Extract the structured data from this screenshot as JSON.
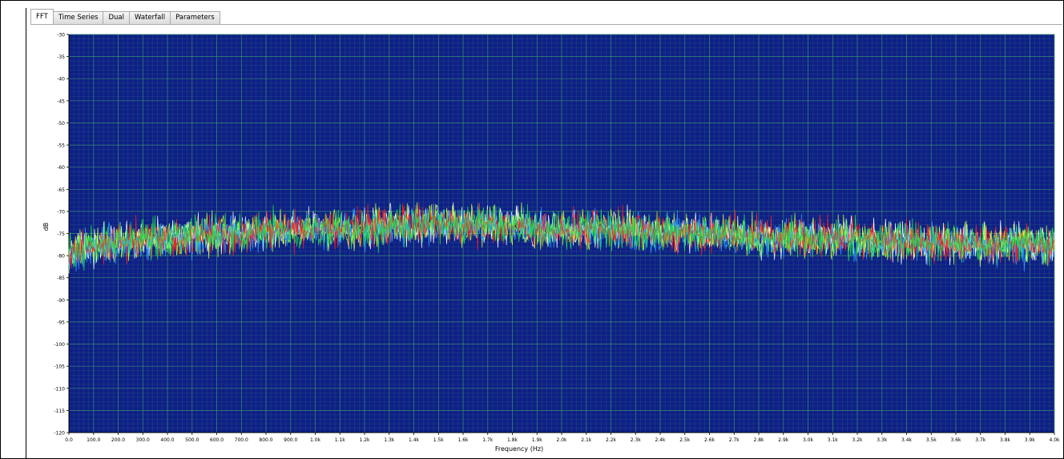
{
  "tabs": [
    {
      "label": "FFT",
      "active": true
    },
    {
      "label": "Time Series",
      "active": false
    },
    {
      "label": "Dual",
      "active": false
    },
    {
      "label": "Waterfall",
      "active": false
    },
    {
      "label": "Parameters",
      "active": false
    }
  ],
  "colors": {
    "plot_background": "#0e1f87",
    "grid": "#3a8a6c",
    "axis_text": "#000000"
  },
  "chart_data": {
    "type": "line",
    "title": "",
    "xlabel": "Frequency (Hz)",
    "ylabel": "dB",
    "xlim": [
      0,
      4000
    ],
    "ylim": [
      -120,
      -30
    ],
    "grid": true,
    "legend": "none",
    "x_tick_labels": [
      "0.0",
      "100.0",
      "200.0",
      "300.0",
      "400.0",
      "500.0",
      "600.0",
      "700.0",
      "800.0",
      "900.0",
      "1.0k",
      "1.1k",
      "1.2k",
      "1.3k",
      "1.4k",
      "1.5k",
      "1.6k",
      "1.7k",
      "1.8k",
      "1.9k",
      "2.0k",
      "2.1k",
      "2.2k",
      "2.3k",
      "2.4k",
      "2.5k",
      "2.6k",
      "2.7k",
      "2.8k",
      "2.9k",
      "3.0k",
      "3.1k",
      "3.2k",
      "3.3k",
      "3.4k",
      "3.5k",
      "3.6k",
      "3.7k",
      "3.8k",
      "3.9k",
      "4.0k"
    ],
    "y_tick_labels": [
      "-30",
      "-35",
      "-40",
      "-45",
      "-50",
      "-55",
      "-60",
      "-65",
      "-70",
      "-75",
      "-80",
      "-85",
      "-90",
      "-95",
      "-100",
      "-105",
      "-110",
      "-115",
      "-120"
    ],
    "series": [
      {
        "color": "#ffffff",
        "x": [
          0,
          100,
          200,
          300,
          400,
          500,
          600,
          700,
          800,
          900,
          1000,
          1100,
          1200,
          1300,
          1400,
          1500,
          1600,
          1700,
          1800,
          1900,
          2000,
          2100,
          2200,
          2300,
          2400,
          2500,
          2600,
          2700,
          2800,
          2900,
          3000,
          3100,
          3200,
          3300,
          3400,
          3500,
          3600,
          3700,
          3800,
          3900,
          4000
        ],
        "y": [
          -79,
          -78,
          -77,
          -76,
          -76,
          -75,
          -75,
          -75,
          -74,
          -74,
          -74,
          -74,
          -74,
          -73,
          -73,
          -73,
          -73,
          -73,
          -73,
          -74,
          -74,
          -74,
          -74,
          -74,
          -75,
          -75,
          -75,
          -75,
          -76,
          -76,
          -76,
          -76,
          -76,
          -76,
          -77,
          -77,
          -77,
          -77,
          -77,
          -77,
          -78
        ]
      },
      {
        "color": "#c8ff3c",
        "x": [
          0,
          100,
          200,
          300,
          400,
          500,
          600,
          700,
          800,
          900,
          1000,
          1100,
          1200,
          1300,
          1400,
          1500,
          1600,
          1700,
          1800,
          1900,
          2000,
          2100,
          2200,
          2300,
          2400,
          2500,
          2600,
          2700,
          2800,
          2900,
          3000,
          3100,
          3200,
          3300,
          3400,
          3500,
          3600,
          3700,
          3800,
          3900,
          4000
        ],
        "y": [
          -79,
          -78,
          -77,
          -76,
          -76,
          -76,
          -75,
          -75,
          -74,
          -74,
          -74,
          -74,
          -74,
          -73,
          -73,
          -73,
          -73,
          -73,
          -73,
          -74,
          -74,
          -74,
          -74,
          -74,
          -75,
          -75,
          -75,
          -75,
          -76,
          -76,
          -76,
          -76,
          -76,
          -77,
          -77,
          -77,
          -77,
          -77,
          -77,
          -77,
          -78
        ]
      },
      {
        "color": "#2a9cff",
        "x": [
          0,
          100,
          200,
          300,
          400,
          500,
          600,
          700,
          800,
          900,
          1000,
          1100,
          1200,
          1300,
          1400,
          1500,
          1600,
          1700,
          1800,
          1900,
          2000,
          2100,
          2200,
          2300,
          2400,
          2500,
          2600,
          2700,
          2800,
          2900,
          3000,
          3100,
          3200,
          3300,
          3400,
          3500,
          3600,
          3700,
          3800,
          3900,
          4000
        ],
        "y": [
          -80,
          -78,
          -77,
          -77,
          -76,
          -76,
          -75,
          -75,
          -75,
          -74,
          -74,
          -74,
          -74,
          -74,
          -73,
          -73,
          -73,
          -73,
          -74,
          -74,
          -74,
          -74,
          -74,
          -75,
          -75,
          -75,
          -75,
          -76,
          -76,
          -76,
          -76,
          -76,
          -77,
          -77,
          -77,
          -77,
          -77,
          -78,
          -78,
          -78,
          -78
        ]
      },
      {
        "color": "#ff2020",
        "x": [
          0,
          100,
          200,
          300,
          400,
          500,
          600,
          700,
          800,
          900,
          1000,
          1100,
          1200,
          1300,
          1400,
          1500,
          1600,
          1700,
          1800,
          1900,
          2000,
          2100,
          2200,
          2300,
          2400,
          2500,
          2600,
          2700,
          2800,
          2900,
          3000,
          3100,
          3200,
          3300,
          3400,
          3500,
          3600,
          3700,
          3800,
          3900,
          4000
        ],
        "y": [
          -79,
          -78,
          -77,
          -76,
          -76,
          -75,
          -75,
          -75,
          -74,
          -74,
          -74,
          -74,
          -73,
          -73,
          -73,
          -73,
          -73,
          -73,
          -73,
          -74,
          -74,
          -74,
          -74,
          -74,
          -75,
          -75,
          -75,
          -75,
          -75,
          -76,
          -76,
          -76,
          -76,
          -76,
          -77,
          -77,
          -77,
          -77,
          -77,
          -77,
          -78
        ]
      },
      {
        "color": "#20e050",
        "x": [
          0,
          100,
          200,
          300,
          400,
          500,
          600,
          700,
          800,
          900,
          1000,
          1100,
          1200,
          1300,
          1400,
          1500,
          1600,
          1700,
          1800,
          1900,
          2000,
          2100,
          2200,
          2300,
          2400,
          2500,
          2600,
          2700,
          2800,
          2900,
          3000,
          3100,
          3200,
          3300,
          3400,
          3500,
          3600,
          3700,
          3800,
          3900,
          4000
        ],
        "y": [
          -79,
          -78,
          -77,
          -76,
          -76,
          -75,
          -75,
          -75,
          -74,
          -74,
          -74,
          -74,
          -74,
          -73,
          -73,
          -73,
          -73,
          -73,
          -73,
          -74,
          -74,
          -74,
          -74,
          -74,
          -75,
          -75,
          -75,
          -75,
          -76,
          -76,
          -76,
          -76,
          -76,
          -76,
          -77,
          -77,
          -77,
          -77,
          -77,
          -77,
          -78
        ]
      }
    ]
  }
}
